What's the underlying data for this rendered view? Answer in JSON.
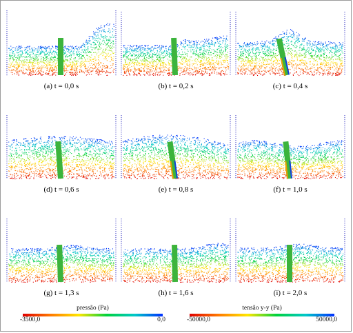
{
  "panels": [
    {
      "id": "a",
      "caption": "(a) t = 0,0 s",
      "time": 0.0,
      "gate_tilt_deg": 0
    },
    {
      "id": "b",
      "caption": "(b) t = 0,2 s",
      "time": 0.2,
      "gate_tilt_deg": 2
    },
    {
      "id": "c",
      "caption": "(c) t = 0,4 s",
      "time": 0.4,
      "gate_tilt_deg": 12
    },
    {
      "id": "d",
      "caption": "(d) t = 0,6 s",
      "time": 0.6,
      "gate_tilt_deg": 4
    },
    {
      "id": "e",
      "caption": "(e) t = 0,8 s",
      "time": 0.8,
      "gate_tilt_deg": 8
    },
    {
      "id": "f",
      "caption": "(f) t = 1,0 s",
      "time": 1.0,
      "gate_tilt_deg": 6
    },
    {
      "id": "g",
      "caption": "(g) t = 1,3 s",
      "time": 1.3,
      "gate_tilt_deg": 2
    },
    {
      "id": "h",
      "caption": "(h) t = 1,6 s",
      "time": 1.6,
      "gate_tilt_deg": 1
    },
    {
      "id": "i",
      "caption": "(i) t = 2,0 s",
      "time": 2.0,
      "gate_tilt_deg": 0
    }
  ],
  "legends": {
    "pressure": {
      "title": "pressão (Pa)",
      "min_label": "-3500,0",
      "max_label": "0,0"
    },
    "stress": {
      "title": "tensão y-y (Pa)",
      "min_label": "-50000,0",
      "max_label": "50000,0"
    }
  },
  "colors": {
    "ramp": [
      "#e00000",
      "#ff7a00",
      "#ffe600",
      "#00d23c",
      "#00c8c8",
      "#0030ff"
    ],
    "gate": "#3cb43c",
    "wall": "#3030c0",
    "frame": "#9a9a9a"
  }
}
